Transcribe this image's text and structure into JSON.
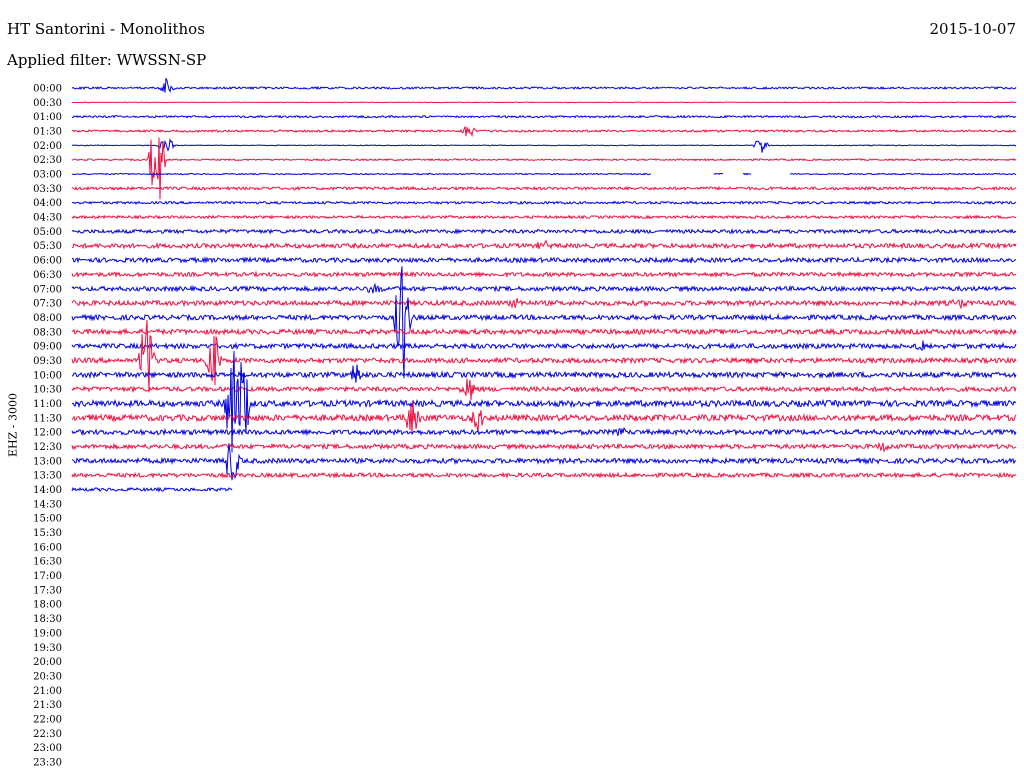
{
  "header": {
    "station": "HT Santorini - Monolithos",
    "date": "2015-10-07",
    "filter": "Applied filter: WWSSN-SP",
    "channel": "EHZ - 3000"
  },
  "chart_data": {
    "type": "line",
    "title": "HT Santorini - Monolithos",
    "subtitle": "Applied filter: WWSSN-SP",
    "ylabel": "EHZ - 3000",
    "tick_labels": [
      "00:00",
      "00:30",
      "01:00",
      "01:30",
      "02:00",
      "02:30",
      "03:00",
      "03:30",
      "04:00",
      "04:30",
      "05:00",
      "05:30",
      "06:00",
      "06:30",
      "07:00",
      "07:30",
      "08:00",
      "08:30",
      "09:00",
      "09:30",
      "10:00",
      "10:30",
      "11:00",
      "11:30",
      "12:00",
      "12:30",
      "13:00",
      "13:30",
      "14:00",
      "14:30",
      "15:00",
      "15:30",
      "16:00",
      "16:30",
      "17:00",
      "17:30",
      "18:00",
      "18:30",
      "19:00",
      "19:30",
      "20:00",
      "20:30",
      "21:00",
      "21:30",
      "22:00",
      "22:30",
      "23:00",
      "23:30"
    ],
    "series_colors": [
      "#0000e0",
      "#f01040"
    ],
    "rows_with_data": 29,
    "last_row_fraction": 0.17,
    "noise_levels": [
      1,
      0.3,
      1,
      1,
      0.4,
      0.8,
      0.6,
      1.4,
      1.2,
      1.3,
      1.8,
      2.2,
      2.2,
      2.0,
      2.2,
      2.4,
      2.4,
      2.4,
      2.4,
      2.4,
      2.6,
      2.2,
      3.0,
      3.0,
      2.4,
      2.2,
      2.4,
      2.0,
      1.6
    ],
    "events": [
      {
        "row": 0,
        "x": 0.1,
        "amp": 10
      },
      {
        "row": 3,
        "x": 0.42,
        "amp": 8
      },
      {
        "row": 4,
        "x": 0.1,
        "amp": 10
      },
      {
        "row": 4,
        "x": 0.73,
        "amp": 10
      },
      {
        "row": 5,
        "x": 0.09,
        "amp": 60
      },
      {
        "row": 11,
        "x": 0.05,
        "amp": 5
      },
      {
        "row": 11,
        "x": 0.5,
        "amp": 5
      },
      {
        "row": 12,
        "x": 0.66,
        "amp": 6
      },
      {
        "row": 14,
        "x": 0.32,
        "amp": 6
      },
      {
        "row": 15,
        "x": 0.47,
        "amp": 6
      },
      {
        "row": 15,
        "x": 0.94,
        "amp": 5
      },
      {
        "row": 16,
        "x": 0.35,
        "amp": 75
      },
      {
        "row": 18,
        "x": 0.9,
        "amp": 6
      },
      {
        "row": 19,
        "x": 0.08,
        "amp": 60
      },
      {
        "row": 19,
        "x": 0.15,
        "amp": 32
      },
      {
        "row": 20,
        "x": 0.3,
        "amp": 12
      },
      {
        "row": 21,
        "x": 0.42,
        "amp": 14
      },
      {
        "row": 22,
        "x": 0.17,
        "amp": 70
      },
      {
        "row": 22,
        "x": 0.18,
        "amp": 55
      },
      {
        "row": 23,
        "x": 0.36,
        "amp": 20
      },
      {
        "row": 23,
        "x": 0.43,
        "amp": 14
      },
      {
        "row": 24,
        "x": 0.58,
        "amp": 6
      },
      {
        "row": 25,
        "x": 0.86,
        "amp": 5
      },
      {
        "row": 26,
        "x": 0.17,
        "amp": 35
      }
    ],
    "gap": {
      "row": 6,
      "x_start": 0.614,
      "x_end": 0.76
    }
  }
}
